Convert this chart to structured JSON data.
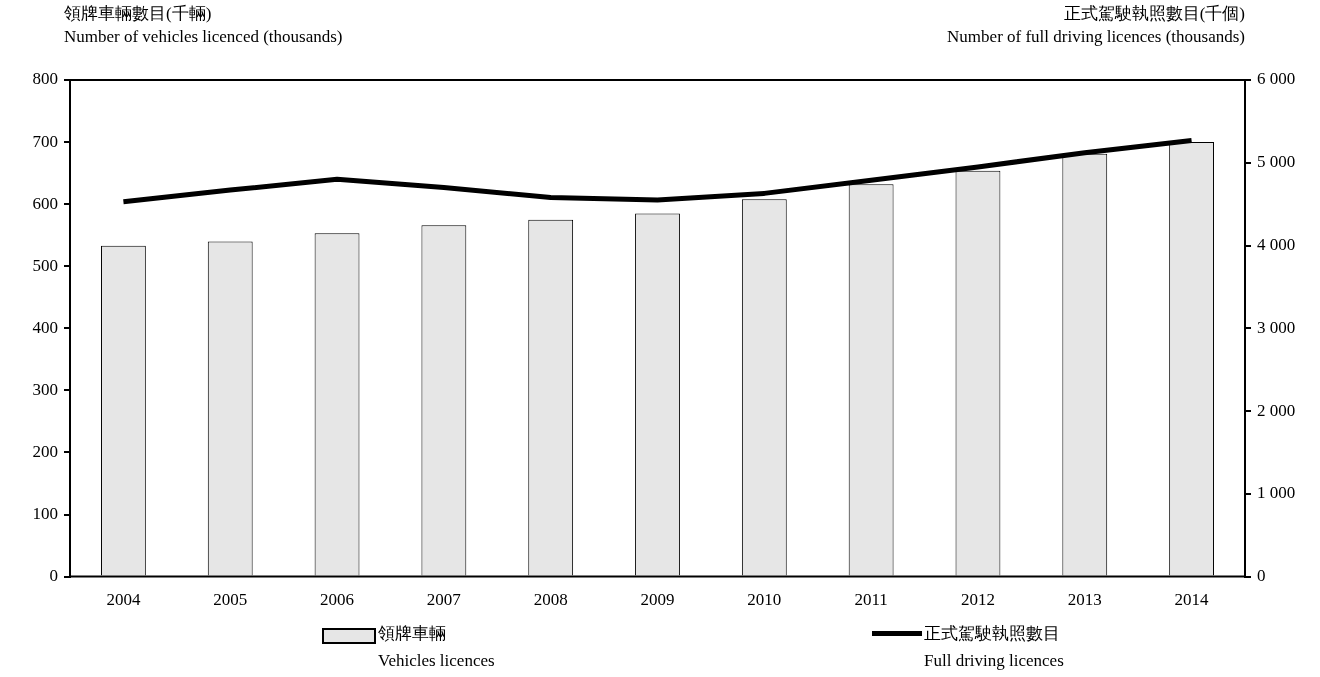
{
  "chart_data": {
    "type": "bar",
    "ylabel": "領牌車輛數目(千輛)\nNumber of vehicles licenced (thousands)",
    "y2label": "正式駕駛執照數目(千個)\nNumber of full driving licences (thousands)",
    "categories": [
      "2004",
      "2005",
      "2006",
      "2007",
      "2008",
      "2009",
      "2010",
      "2011",
      "2012",
      "2013",
      "2014"
    ],
    "series": [
      {
        "name": "領牌車輛\nVehicles licences",
        "color": "#e6e6e6",
        "values": [
          533,
          540,
          553,
          566,
          575,
          585,
          608,
          632,
          654,
          681,
          700
        ]
      },
      {
        "name": "正式駕駛執照數目\nFull driving licences",
        "type": "line",
        "axis": "y2",
        "color": "#000000",
        "values": [
          4530,
          4670,
          4800,
          4700,
          4580,
          4550,
          4630,
          4790,
          4950,
          5120,
          5270
        ]
      }
    ],
    "ylim": [
      0,
      800
    ],
    "yticks": [
      0,
      100,
      200,
      300,
      400,
      500,
      600,
      700,
      800
    ],
    "y2lim": [
      0,
      6000
    ],
    "y2ticks": [
      0,
      {
        "value": 1000,
        "label": "1 000"
      },
      {
        "value": 2000,
        "label": "2 000"
      },
      {
        "value": 3000,
        "label": "3 000"
      },
      {
        "value": 4000,
        "label": "4 000"
      },
      {
        "value": 5000,
        "label": "5 000"
      },
      {
        "value": 6000,
        "label": "6 000"
      }
    ],
    "grid": false,
    "legend": "bottom",
    "marker": "none",
    "line_style": "solid"
  }
}
